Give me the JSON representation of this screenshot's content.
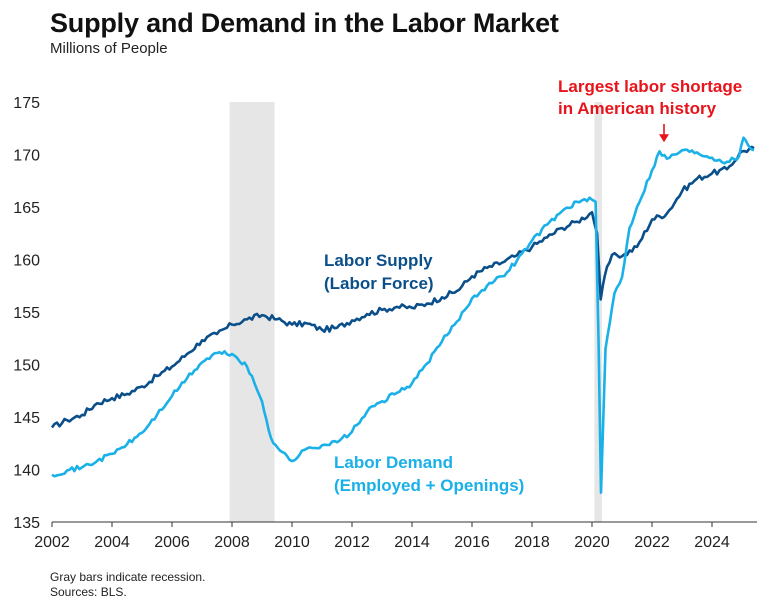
{
  "header": {
    "title": "Supply and Demand in the Labor Market",
    "subtitle": "Millions of People"
  },
  "footer": {
    "note": "Gray bars indicate recession.",
    "sources": "Sources: BLS."
  },
  "colors": {
    "supply": "#0b4f8a",
    "demand": "#1ab0e8",
    "recession": "#e6e6e6",
    "annotation": "#e8141b",
    "axis": "#333333"
  },
  "chart_data": {
    "type": "line",
    "title": "Supply and Demand in the Labor Market",
    "ylabel": "Millions of People",
    "xlim": [
      2002.0,
      2025.5
    ],
    "ylim": [
      135,
      175
    ],
    "yticks": [
      135,
      140,
      145,
      150,
      155,
      160,
      165,
      170,
      175
    ],
    "xticks": [
      2002,
      2004,
      2006,
      2008,
      2010,
      2012,
      2014,
      2016,
      2018,
      2020,
      2022,
      2024
    ],
    "grid": false,
    "recessions": [
      [
        2007.92,
        2009.42
      ],
      [
        2020.08,
        2020.33
      ]
    ],
    "series": [
      {
        "name": "Labor Supply\n(Labor Force)",
        "label_lines": [
          "Labor Supply",
          "(Labor Force)"
        ],
        "color_key": "supply",
        "points": [
          [
            2002.0,
            144.0
          ],
          [
            2002.5,
            144.7
          ],
          [
            2003.0,
            145.2
          ],
          [
            2003.5,
            146.3
          ],
          [
            2004.0,
            146.8
          ],
          [
            2004.5,
            147.2
          ],
          [
            2005.0,
            147.9
          ],
          [
            2005.5,
            148.9
          ],
          [
            2006.0,
            149.8
          ],
          [
            2006.5,
            151.0
          ],
          [
            2007.0,
            152.3
          ],
          [
            2007.5,
            152.9
          ],
          [
            2008.0,
            153.8
          ],
          [
            2008.5,
            154.3
          ],
          [
            2009.0,
            154.7
          ],
          [
            2009.5,
            154.3
          ],
          [
            2010.0,
            153.8
          ],
          [
            2010.5,
            153.9
          ],
          [
            2011.0,
            153.3
          ],
          [
            2011.5,
            153.5
          ],
          [
            2012.0,
            154.2
          ],
          [
            2012.5,
            154.8
          ],
          [
            2013.0,
            155.2
          ],
          [
            2013.5,
            155.5
          ],
          [
            2014.0,
            155.4
          ],
          [
            2014.5,
            155.8
          ],
          [
            2015.0,
            156.4
          ],
          [
            2015.5,
            157.0
          ],
          [
            2016.0,
            158.4
          ],
          [
            2016.5,
            159.2
          ],
          [
            2017.0,
            159.7
          ],
          [
            2017.5,
            160.4
          ],
          [
            2018.0,
            161.2
          ],
          [
            2018.5,
            162.1
          ],
          [
            2019.0,
            163.0
          ],
          [
            2019.5,
            163.6
          ],
          [
            2020.0,
            164.5
          ],
          [
            2020.17,
            162.5
          ],
          [
            2020.29,
            156.2
          ],
          [
            2020.5,
            159.3
          ],
          [
            2020.75,
            160.6
          ],
          [
            2021.0,
            160.3
          ],
          [
            2021.5,
            161.2
          ],
          [
            2022.0,
            163.8
          ],
          [
            2022.5,
            164.4
          ],
          [
            2023.0,
            166.5
          ],
          [
            2023.5,
            167.7
          ],
          [
            2024.0,
            168.2
          ],
          [
            2024.5,
            168.6
          ],
          [
            2025.0,
            170.3
          ],
          [
            2025.4,
            170.6
          ]
        ]
      },
      {
        "name": "Labor Demand\n(Employed + Openings)",
        "label_lines": [
          "Labor Demand",
          "(Employed + Openings)"
        ],
        "color_key": "demand",
        "points": [
          [
            2002.0,
            139.5
          ],
          [
            2002.5,
            139.9
          ],
          [
            2003.0,
            140.2
          ],
          [
            2003.5,
            140.8
          ],
          [
            2004.0,
            141.5
          ],
          [
            2004.5,
            142.4
          ],
          [
            2005.0,
            143.5
          ],
          [
            2005.5,
            145.2
          ],
          [
            2006.0,
            147.0
          ],
          [
            2006.5,
            148.7
          ],
          [
            2007.0,
            150.2
          ],
          [
            2007.5,
            151.1
          ],
          [
            2008.0,
            151.0
          ],
          [
            2008.5,
            149.8
          ],
          [
            2009.0,
            146.5
          ],
          [
            2009.3,
            143.0
          ],
          [
            2009.6,
            141.8
          ],
          [
            2010.0,
            140.8
          ],
          [
            2010.5,
            142.0
          ],
          [
            2011.0,
            142.3
          ],
          [
            2011.5,
            142.6
          ],
          [
            2012.0,
            143.6
          ],
          [
            2012.5,
            145.5
          ],
          [
            2013.0,
            146.5
          ],
          [
            2013.5,
            147.3
          ],
          [
            2014.0,
            148.2
          ],
          [
            2014.5,
            150.1
          ],
          [
            2015.0,
            152.2
          ],
          [
            2015.5,
            154.1
          ],
          [
            2016.0,
            156.3
          ],
          [
            2016.5,
            157.5
          ],
          [
            2017.0,
            158.4
          ],
          [
            2017.5,
            159.9
          ],
          [
            2018.0,
            161.8
          ],
          [
            2018.5,
            163.3
          ],
          [
            2019.0,
            164.6
          ],
          [
            2019.5,
            165.5
          ],
          [
            2020.0,
            165.7
          ],
          [
            2020.12,
            165.5
          ],
          [
            2020.22,
            152.0
          ],
          [
            2020.3,
            137.8
          ],
          [
            2020.45,
            151.5
          ],
          [
            2020.75,
            156.8
          ],
          [
            2021.0,
            158.3
          ],
          [
            2021.25,
            163.0
          ],
          [
            2021.5,
            165.0
          ],
          [
            2022.0,
            168.5
          ],
          [
            2022.25,
            170.3
          ],
          [
            2022.5,
            169.6
          ],
          [
            2023.0,
            170.4
          ],
          [
            2023.5,
            170.2
          ],
          [
            2024.0,
            169.7
          ],
          [
            2024.5,
            169.3
          ],
          [
            2024.9,
            169.8
          ],
          [
            2025.05,
            171.6
          ],
          [
            2025.2,
            170.9
          ],
          [
            2025.4,
            170.4
          ]
        ]
      }
    ],
    "annotation": {
      "lines": [
        "Largest labor shortage",
        "in American history"
      ],
      "point_to": [
        2022.4,
        170.6
      ]
    }
  }
}
